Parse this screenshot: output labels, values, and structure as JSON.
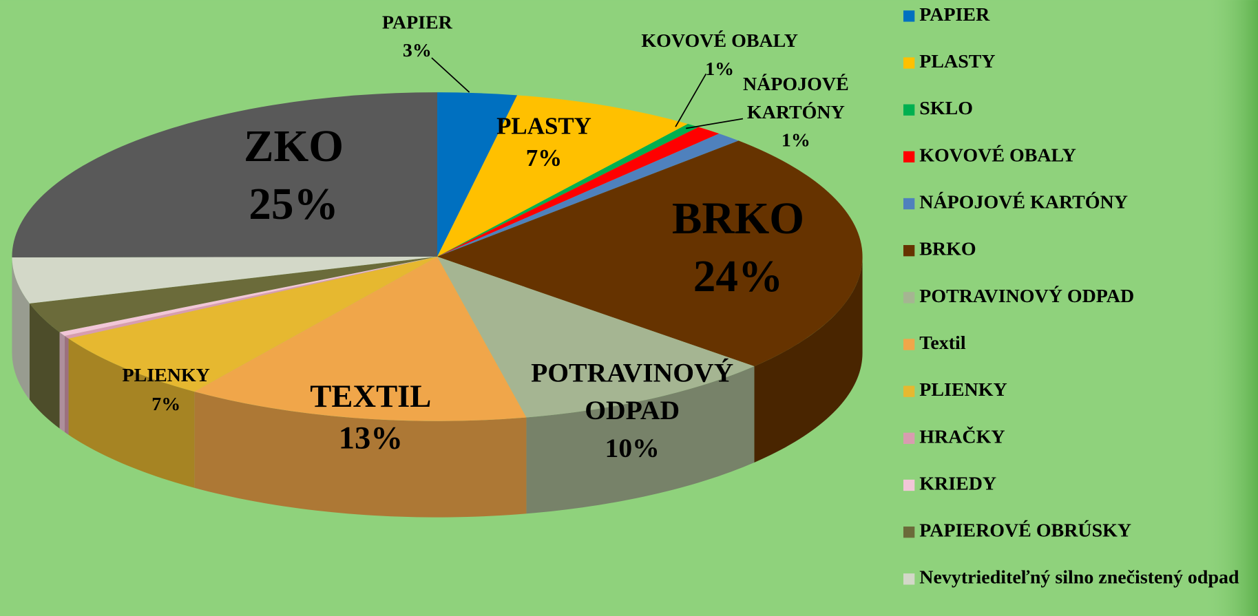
{
  "chart_data": {
    "type": "pie3d",
    "categories": [
      "PAPIER",
      "PLASTY",
      "SKLO",
      "KOVOVÉ OBALY",
      "NÁPOJOVÉ KARTÓNY",
      "BRKO",
      "POTRAVINOVÝ ODPAD",
      "Textil",
      "PLIENKY",
      "HRAČKY",
      "KRIEDY",
      "PAPIEROVÉ OBRÚSKY",
      "Nevytriediteľný silno znečistený odpad",
      "ZKO"
    ],
    "values": [
      3,
      7,
      0.5,
      1,
      1,
      24,
      10,
      13,
      7,
      0.3,
      0.4,
      3,
      4.5,
      25
    ],
    "value_labels": [
      "3%",
      "7%",
      null,
      "1%",
      "1%",
      "24%",
      "10%",
      "13%",
      "7%",
      null,
      null,
      null,
      null,
      "25%"
    ],
    "slice_labels": [
      [
        "PAPIER"
      ],
      [
        "PLASTY"
      ],
      null,
      [
        "KOVOVÉ OBALY"
      ],
      [
        "NÁPOJOVÉ",
        "KARTÓNY"
      ],
      [
        "BRKO"
      ],
      [
        "POTRAVINOVÝ",
        "ODPAD"
      ],
      [
        "TEXTIL"
      ],
      [
        "PLIENKY"
      ],
      null,
      null,
      null,
      null,
      [
        "ZKO"
      ]
    ],
    "colors": [
      "#0070c0",
      "#ffc000",
      "#00b050",
      "#ff0000",
      "#4f81bd",
      "#663300",
      "#a5b592",
      "#f0a64a",
      "#e6b830",
      "#d89cb0",
      "#f2c6d8",
      "#6b6b3a",
      "#d3d8c8",
      "#595959"
    ],
    "legend": "right"
  }
}
